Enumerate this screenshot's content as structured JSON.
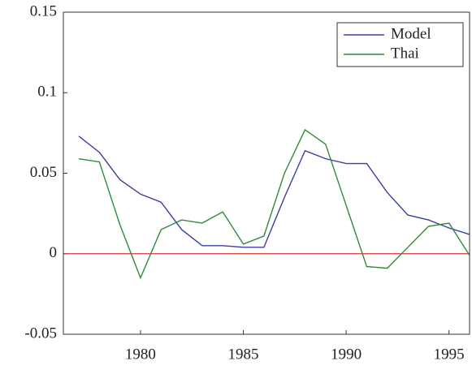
{
  "chart_data": {
    "type": "line",
    "x": [
      1977,
      1978,
      1979,
      1980,
      1981,
      1982,
      1983,
      1984,
      1985,
      1986,
      1987,
      1988,
      1989,
      1990,
      1991,
      1992,
      1993,
      1994,
      1995,
      1996
    ],
    "series": [
      {
        "name": "Model",
        "color": "#3a3fa0",
        "values": [
          0.073,
          0.063,
          0.046,
          0.037,
          0.032,
          0.015,
          0.005,
          0.005,
          0.004,
          0.004,
          0.035,
          0.064,
          0.059,
          0.056,
          0.056,
          0.038,
          0.024,
          0.021,
          0.016,
          0.012
        ]
      },
      {
        "name": "Thai",
        "color": "#2f8a3c",
        "values": [
          0.059,
          0.057,
          0.018,
          -0.015,
          0.015,
          0.021,
          0.019,
          0.026,
          0.006,
          0.011,
          0.05,
          0.077,
          0.068,
          0.03,
          -0.008,
          -0.009,
          0.004,
          0.017,
          0.019,
          -0.001
        ]
      }
    ],
    "reference_line": {
      "value": 0,
      "color": "#e03030"
    },
    "xlim": [
      1976.25,
      1996
    ],
    "xticks": [
      1980,
      1985,
      1990,
      1995
    ],
    "ylim": [
      -0.05,
      0.15
    ],
    "yticks": [
      -0.05,
      0,
      0.05,
      0.1,
      0.15
    ],
    "legend": "upper-right"
  }
}
